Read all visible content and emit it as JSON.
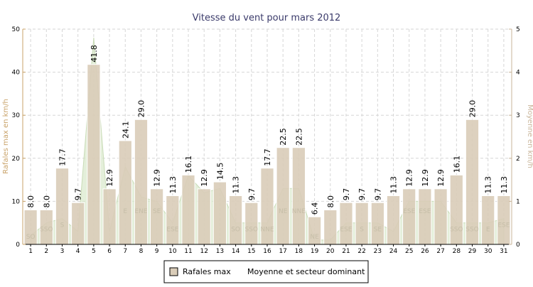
{
  "chart_data": {
    "type": "bar",
    "title": "Vitesse du vent pour mars 2012",
    "ylabel": "Rafales max en km/h",
    "y2label": "Moyenne en km/h",
    "ylim": [
      0,
      50
    ],
    "y2lim": [
      0,
      5
    ],
    "yticks": [
      "0",
      "10",
      "20",
      "30",
      "40",
      "50"
    ],
    "y2ticks": [
      "0",
      "1",
      "2",
      "3",
      "4",
      "5"
    ],
    "grid": true,
    "legend_position": "bottom",
    "categories": [
      "1",
      "2",
      "3",
      "4",
      "5",
      "6",
      "7",
      "8",
      "9",
      "10",
      "11",
      "12",
      "13",
      "14",
      "15",
      "16",
      "17",
      "18",
      "19",
      "20",
      "21",
      "22",
      "23",
      "24",
      "25",
      "26",
      "27",
      "28",
      "29",
      "30",
      "31"
    ],
    "series": [
      {
        "name": "Rafales max",
        "type": "bar",
        "color": "#d9ccb8",
        "values": [
          8.0,
          8.0,
          17.7,
          9.7,
          41.8,
          12.9,
          24.1,
          29.0,
          12.9,
          11.3,
          16.1,
          12.9,
          14.5,
          11.3,
          9.7,
          17.7,
          22.5,
          22.5,
          6.4,
          8.0,
          9.7,
          9.7,
          9.7,
          11.3,
          12.9,
          12.9,
          12.9,
          16.1,
          29.0,
          11.3,
          11.3
        ],
        "labels": [
          "8.0",
          "8.0",
          "17.7",
          "9.7",
          "41.8",
          "12.9",
          "24.1",
          "29.0",
          "12.9",
          "11.3",
          "16.1",
          "12.9",
          "14.5",
          "11.3",
          "9.7",
          "17.7",
          "22.5",
          "22.5",
          "6.4",
          "8.0",
          "9.7",
          "9.7",
          "9.7",
          "11.3",
          "12.9",
          "12.9",
          "12.9",
          "16.1",
          "29.0",
          "11.3",
          "11.3"
        ]
      },
      {
        "name": "Moyenne et secteur dominant",
        "type": "area",
        "color": "#d6e6c6",
        "axis": "right",
        "values": [
          0.2,
          0.5,
          0.6,
          0.3,
          4.8,
          0.3,
          1.8,
          1.1,
          1.0,
          0.5,
          1.6,
          1.2,
          1.3,
          0.5,
          0.5,
          0.5,
          1.3,
          1.3,
          0.1,
          0.1,
          0.5,
          0.5,
          0.5,
          0.3,
          1.0,
          1.0,
          1.0,
          0.5,
          0.5,
          0.5,
          0.6
        ],
        "sectors": [
          "SO",
          "SSO",
          "S",
          "",
          "",
          "",
          "E",
          "ENE",
          "SE",
          "ESE",
          "",
          "",
          "",
          "SO",
          "SSO",
          "NNE",
          "NE",
          "NNE",
          "NE",
          "",
          "ESE",
          "S",
          "SE",
          "",
          "ESE",
          "ESE",
          "",
          "SSO",
          "SSO",
          "E",
          "ESE"
        ]
      }
    ]
  }
}
